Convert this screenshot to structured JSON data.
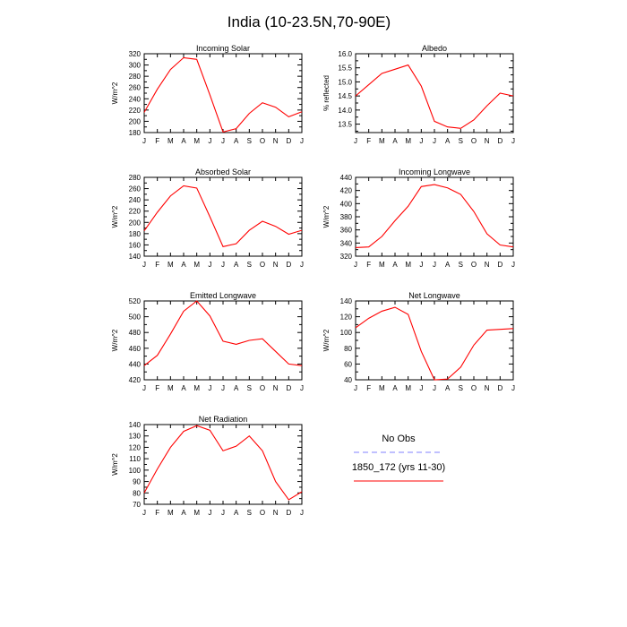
{
  "title": "India (10-23.5N,70-90E)",
  "chart_data": [
    {
      "type": "line",
      "title": "Incoming Solar",
      "ylabel": "W/m^2",
      "categories": [
        "J",
        "F",
        "M",
        "A",
        "M",
        "J",
        "J",
        "A",
        "S",
        "O",
        "N",
        "D",
        "J"
      ],
      "ylim": [
        180,
        320
      ],
      "yticks": [
        180,
        200,
        220,
        240,
        260,
        280,
        300,
        320
      ],
      "series": [
        {
          "name": "1850_172 (yrs 11-30)",
          "color": "#ff0000",
          "values": [
            216,
            257,
            292,
            313,
            310,
            247,
            181,
            187,
            214,
            233,
            225,
            208,
            217
          ]
        }
      ]
    },
    {
      "type": "line",
      "title": "Albedo",
      "ylabel": "% reflected",
      "categories": [
        "J",
        "F",
        "M",
        "A",
        "M",
        "J",
        "J",
        "A",
        "S",
        "O",
        "N",
        "D",
        "J"
      ],
      "ylim": [
        13.2,
        16.0
      ],
      "yticks": [
        13.5,
        14.0,
        14.5,
        15.0,
        15.5,
        16.0
      ],
      "series": [
        {
          "name": "1850_172 (yrs 11-30)",
          "color": "#ff0000",
          "values": [
            14.5,
            14.9,
            15.3,
            15.45,
            15.6,
            14.85,
            13.6,
            13.4,
            13.35,
            13.65,
            14.15,
            14.6,
            14.5
          ]
        }
      ]
    },
    {
      "type": "line",
      "title": "Absorbed Solar",
      "ylabel": "W/m^2",
      "categories": [
        "J",
        "F",
        "M",
        "A",
        "M",
        "J",
        "J",
        "A",
        "S",
        "O",
        "N",
        "D",
        "J"
      ],
      "ylim": [
        140,
        280
      ],
      "yticks": [
        140,
        160,
        180,
        200,
        220,
        240,
        260,
        280
      ],
      "series": [
        {
          "name": "1850_172 (yrs 11-30)",
          "color": "#ff0000",
          "values": [
            185,
            218,
            247,
            265,
            261,
            210,
            157,
            162,
            186,
            202,
            193,
            179,
            186
          ]
        }
      ]
    },
    {
      "type": "line",
      "title": "Incoming Longwave",
      "ylabel": "W/m^2",
      "categories": [
        "J",
        "F",
        "M",
        "A",
        "M",
        "J",
        "J",
        "A",
        "S",
        "O",
        "N",
        "D",
        "J"
      ],
      "ylim": [
        320,
        440
      ],
      "yticks": [
        320,
        340,
        360,
        380,
        400,
        420,
        440
      ],
      "series": [
        {
          "name": "1850_172 (yrs 11-30)",
          "color": "#ff0000",
          "values": [
            333,
            334,
            350,
            374,
            396,
            426,
            429,
            424,
            414,
            388,
            354,
            337,
            334
          ]
        }
      ]
    },
    {
      "type": "line",
      "title": "Emitted Longwave",
      "ylabel": "W/m^2",
      "categories": [
        "J",
        "F",
        "M",
        "A",
        "M",
        "J",
        "J",
        "A",
        "S",
        "O",
        "N",
        "D",
        "J"
      ],
      "ylim": [
        420,
        520
      ],
      "yticks": [
        420,
        440,
        460,
        480,
        500,
        520
      ],
      "series": [
        {
          "name": "1850_172 (yrs 11-30)",
          "color": "#ff0000",
          "values": [
            438,
            451,
            478,
            507,
            520,
            501,
            469,
            465,
            470,
            472,
            456,
            440,
            438
          ]
        }
      ]
    },
    {
      "type": "line",
      "title": "Net Longwave",
      "ylabel": "W/m^2",
      "categories": [
        "J",
        "F",
        "M",
        "A",
        "M",
        "J",
        "J",
        "A",
        "S",
        "O",
        "N",
        "D",
        "J"
      ],
      "ylim": [
        40,
        140
      ],
      "yticks": [
        40,
        60,
        80,
        100,
        120,
        140
      ],
      "series": [
        {
          "name": "1850_172 (yrs 11-30)",
          "color": "#ff0000",
          "values": [
            106,
            118,
            127,
            132,
            123,
            76,
            40,
            41,
            56,
            84,
            103,
            104,
            105
          ]
        }
      ]
    },
    {
      "type": "line",
      "title": "Net Radiation",
      "ylabel": "W/m^2",
      "categories": [
        "J",
        "F",
        "M",
        "A",
        "M",
        "J",
        "J",
        "A",
        "S",
        "O",
        "N",
        "D",
        "J"
      ],
      "ylim": [
        70,
        140
      ],
      "yticks": [
        70,
        80,
        90,
        100,
        110,
        120,
        130,
        140
      ],
      "series": [
        {
          "name": "1850_172 (yrs 11-30)",
          "color": "#ff0000",
          "values": [
            80,
            101,
            120,
            134,
            139,
            135,
            117,
            121,
            130,
            117,
            90,
            74,
            81
          ]
        }
      ]
    }
  ],
  "legend": {
    "items": [
      {
        "label": "No Obs",
        "color": "#8080ff",
        "style": "dashed"
      },
      {
        "label": "1850_172 (yrs 11-30)",
        "color": "#ff0000",
        "style": "solid"
      }
    ]
  }
}
